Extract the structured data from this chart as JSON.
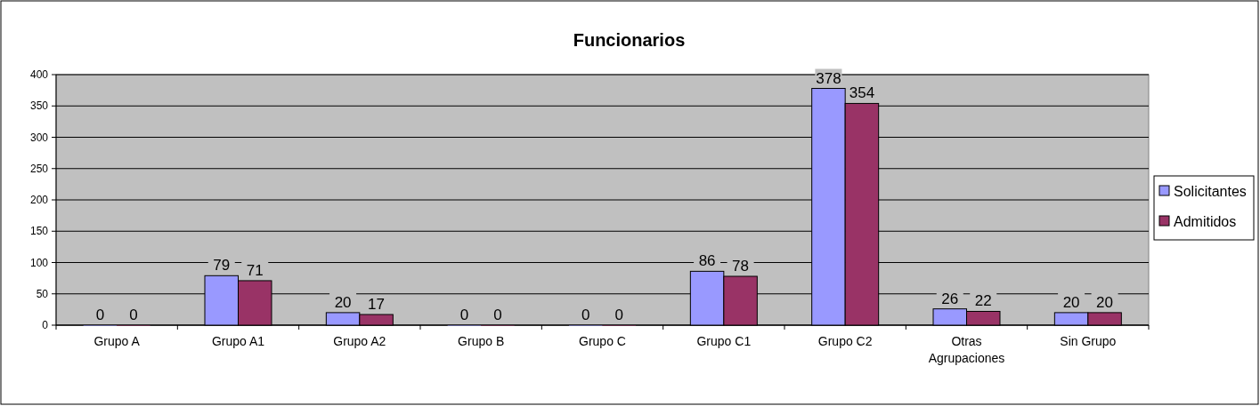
{
  "chart_data": {
    "type": "bar",
    "title": "Funcionarios",
    "categories": [
      "Grupo A",
      "Grupo A1",
      "Grupo A2",
      "Grupo B",
      "Grupo C",
      "Grupo C1",
      "Grupo C2",
      "Otras Agrupaciones",
      "Sin Grupo"
    ],
    "series": [
      {
        "name": "Solicitantes",
        "color": "#9999ff",
        "values": [
          0,
          79,
          20,
          0,
          0,
          86,
          378,
          26,
          20
        ]
      },
      {
        "name": "Admitidos",
        "color": "#993366",
        "values": [
          0,
          71,
          17,
          0,
          0,
          78,
          354,
          22,
          20
        ]
      }
    ],
    "ylim": [
      0,
      400
    ],
    "yticks": [
      0,
      50,
      100,
      150,
      200,
      250,
      300,
      350,
      400
    ],
    "grid": "y",
    "legend": "right",
    "data_labels": true
  }
}
